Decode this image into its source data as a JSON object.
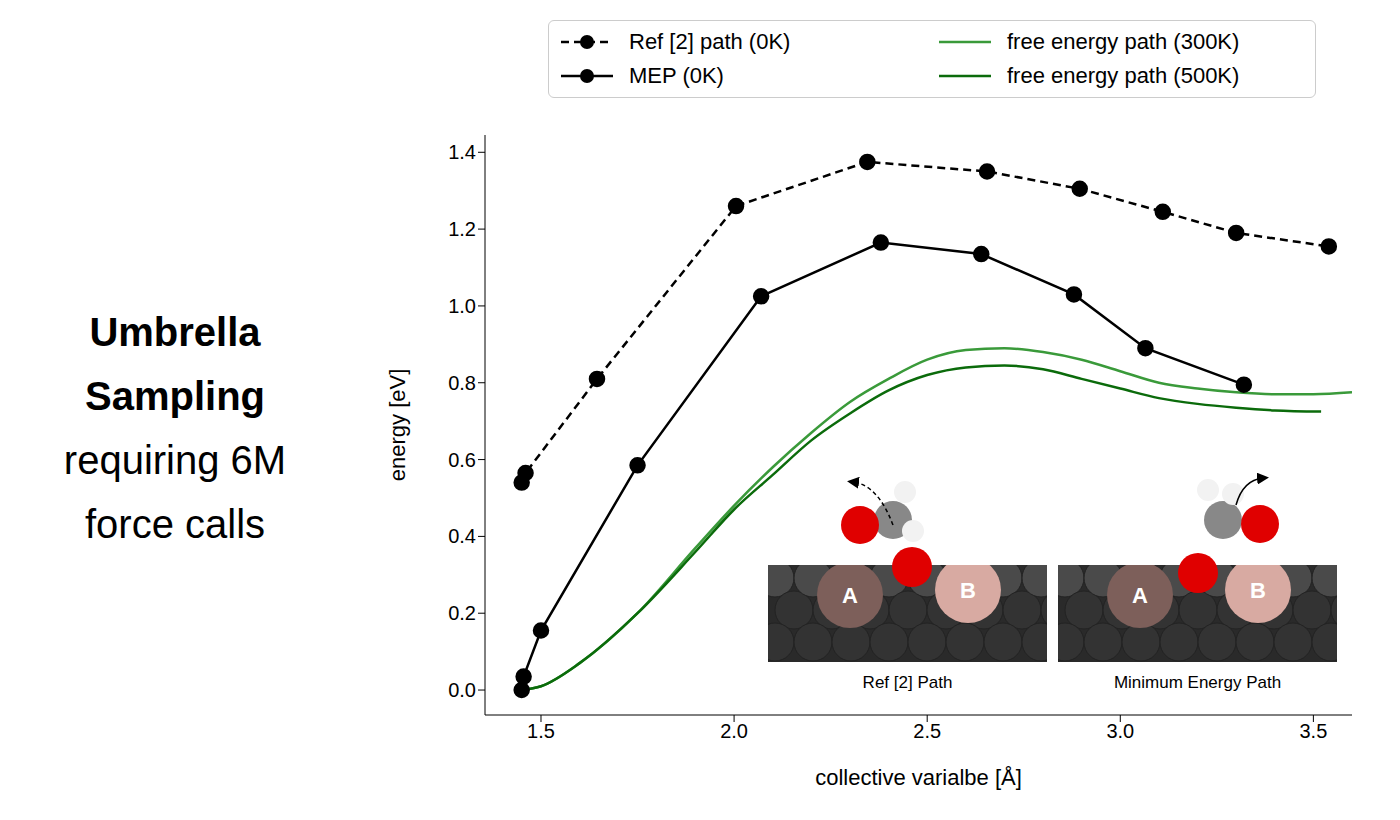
{
  "side_text": {
    "bold": "Umbrella Sampling",
    "text": "requiring 6M force calls"
  },
  "chart_data": {
    "type": "line",
    "x_label": "collective varialbe [Å]",
    "y_label": "energy [eV]",
    "xlim": [
      1.355,
      3.6
    ],
    "ylim": [
      -0.065,
      1.445
    ],
    "xticks": [
      1.5,
      {
        "value": 2,
        "label": "2.0"
      },
      2.5,
      {
        "value": 3,
        "label": "3.0"
      },
      3.5
    ],
    "yticks": [
      {
        "value": 0,
        "label": "0.0"
      },
      0.2,
      0.4,
      0.6,
      0.8,
      {
        "value": 1,
        "label": "1.0"
      },
      1.2,
      1.4
    ],
    "legend": "top",
    "series": [
      {
        "name": "Ref [2] path (0K)",
        "color": "#000000",
        "marker": "circle",
        "line_style": "dashed",
        "x": [
          1.45,
          1.46,
          1.645,
          2.005,
          2.345,
          2.655,
          2.895,
          3.11,
          3.3,
          3.54
        ],
        "values": [
          0.54,
          0.565,
          0.81,
          1.26,
          1.375,
          1.35,
          1.305,
          1.245,
          1.19,
          1.155
        ]
      },
      {
        "name": "MEP (0K)",
        "color": "#000000",
        "marker": "circle",
        "line_style": "solid",
        "x": [
          1.45,
          1.455,
          1.5,
          1.75,
          2.07,
          2.38,
          2.64,
          2.88,
          3.065,
          3.32
        ],
        "values": [
          0,
          0.035,
          0.155,
          0.585,
          1.025,
          1.165,
          1.135,
          1.03,
          0.89,
          0.795
        ]
      },
      {
        "name": "free energy path (300K)",
        "color": "#3a9a3a",
        "marker": "none",
        "line_style": "solid",
        "x": [
          1.45,
          1.5,
          1.6,
          1.75,
          1.9,
          2.0,
          2.1,
          2.2,
          2.3,
          2.4,
          2.5,
          2.6,
          2.7,
          2.8,
          2.9,
          3.0,
          3.1,
          3.2,
          3.3,
          3.4,
          3.5,
          3.6
        ],
        "values": [
          0,
          0.01,
          0.07,
          0.2,
          0.37,
          0.48,
          0.58,
          0.67,
          0.75,
          0.81,
          0.86,
          0.885,
          0.89,
          0.88,
          0.86,
          0.83,
          0.8,
          0.785,
          0.775,
          0.77,
          0.77,
          0.775
        ]
      },
      {
        "name": "free energy path (500K)",
        "color": "#0b6b0b",
        "marker": "none",
        "line_style": "solid",
        "x": [
          1.45,
          1.5,
          1.6,
          1.75,
          1.9,
          2.0,
          2.1,
          2.2,
          2.3,
          2.4,
          2.5,
          2.6,
          2.7,
          2.8,
          2.9,
          3.0,
          3.1,
          3.2,
          3.3,
          3.4,
          3.52
        ],
        "values": [
          0,
          0.01,
          0.07,
          0.2,
          0.36,
          0.47,
          0.56,
          0.65,
          0.72,
          0.78,
          0.82,
          0.84,
          0.845,
          0.835,
          0.81,
          0.785,
          0.76,
          0.745,
          0.735,
          0.728,
          0.725
        ]
      }
    ],
    "annotations": [
      {
        "caption": "Ref [2] Path",
        "labels": [
          "A",
          "B"
        ]
      },
      {
        "caption": "Minimum Energy Path",
        "labels": [
          "A",
          "B"
        ]
      }
    ]
  }
}
